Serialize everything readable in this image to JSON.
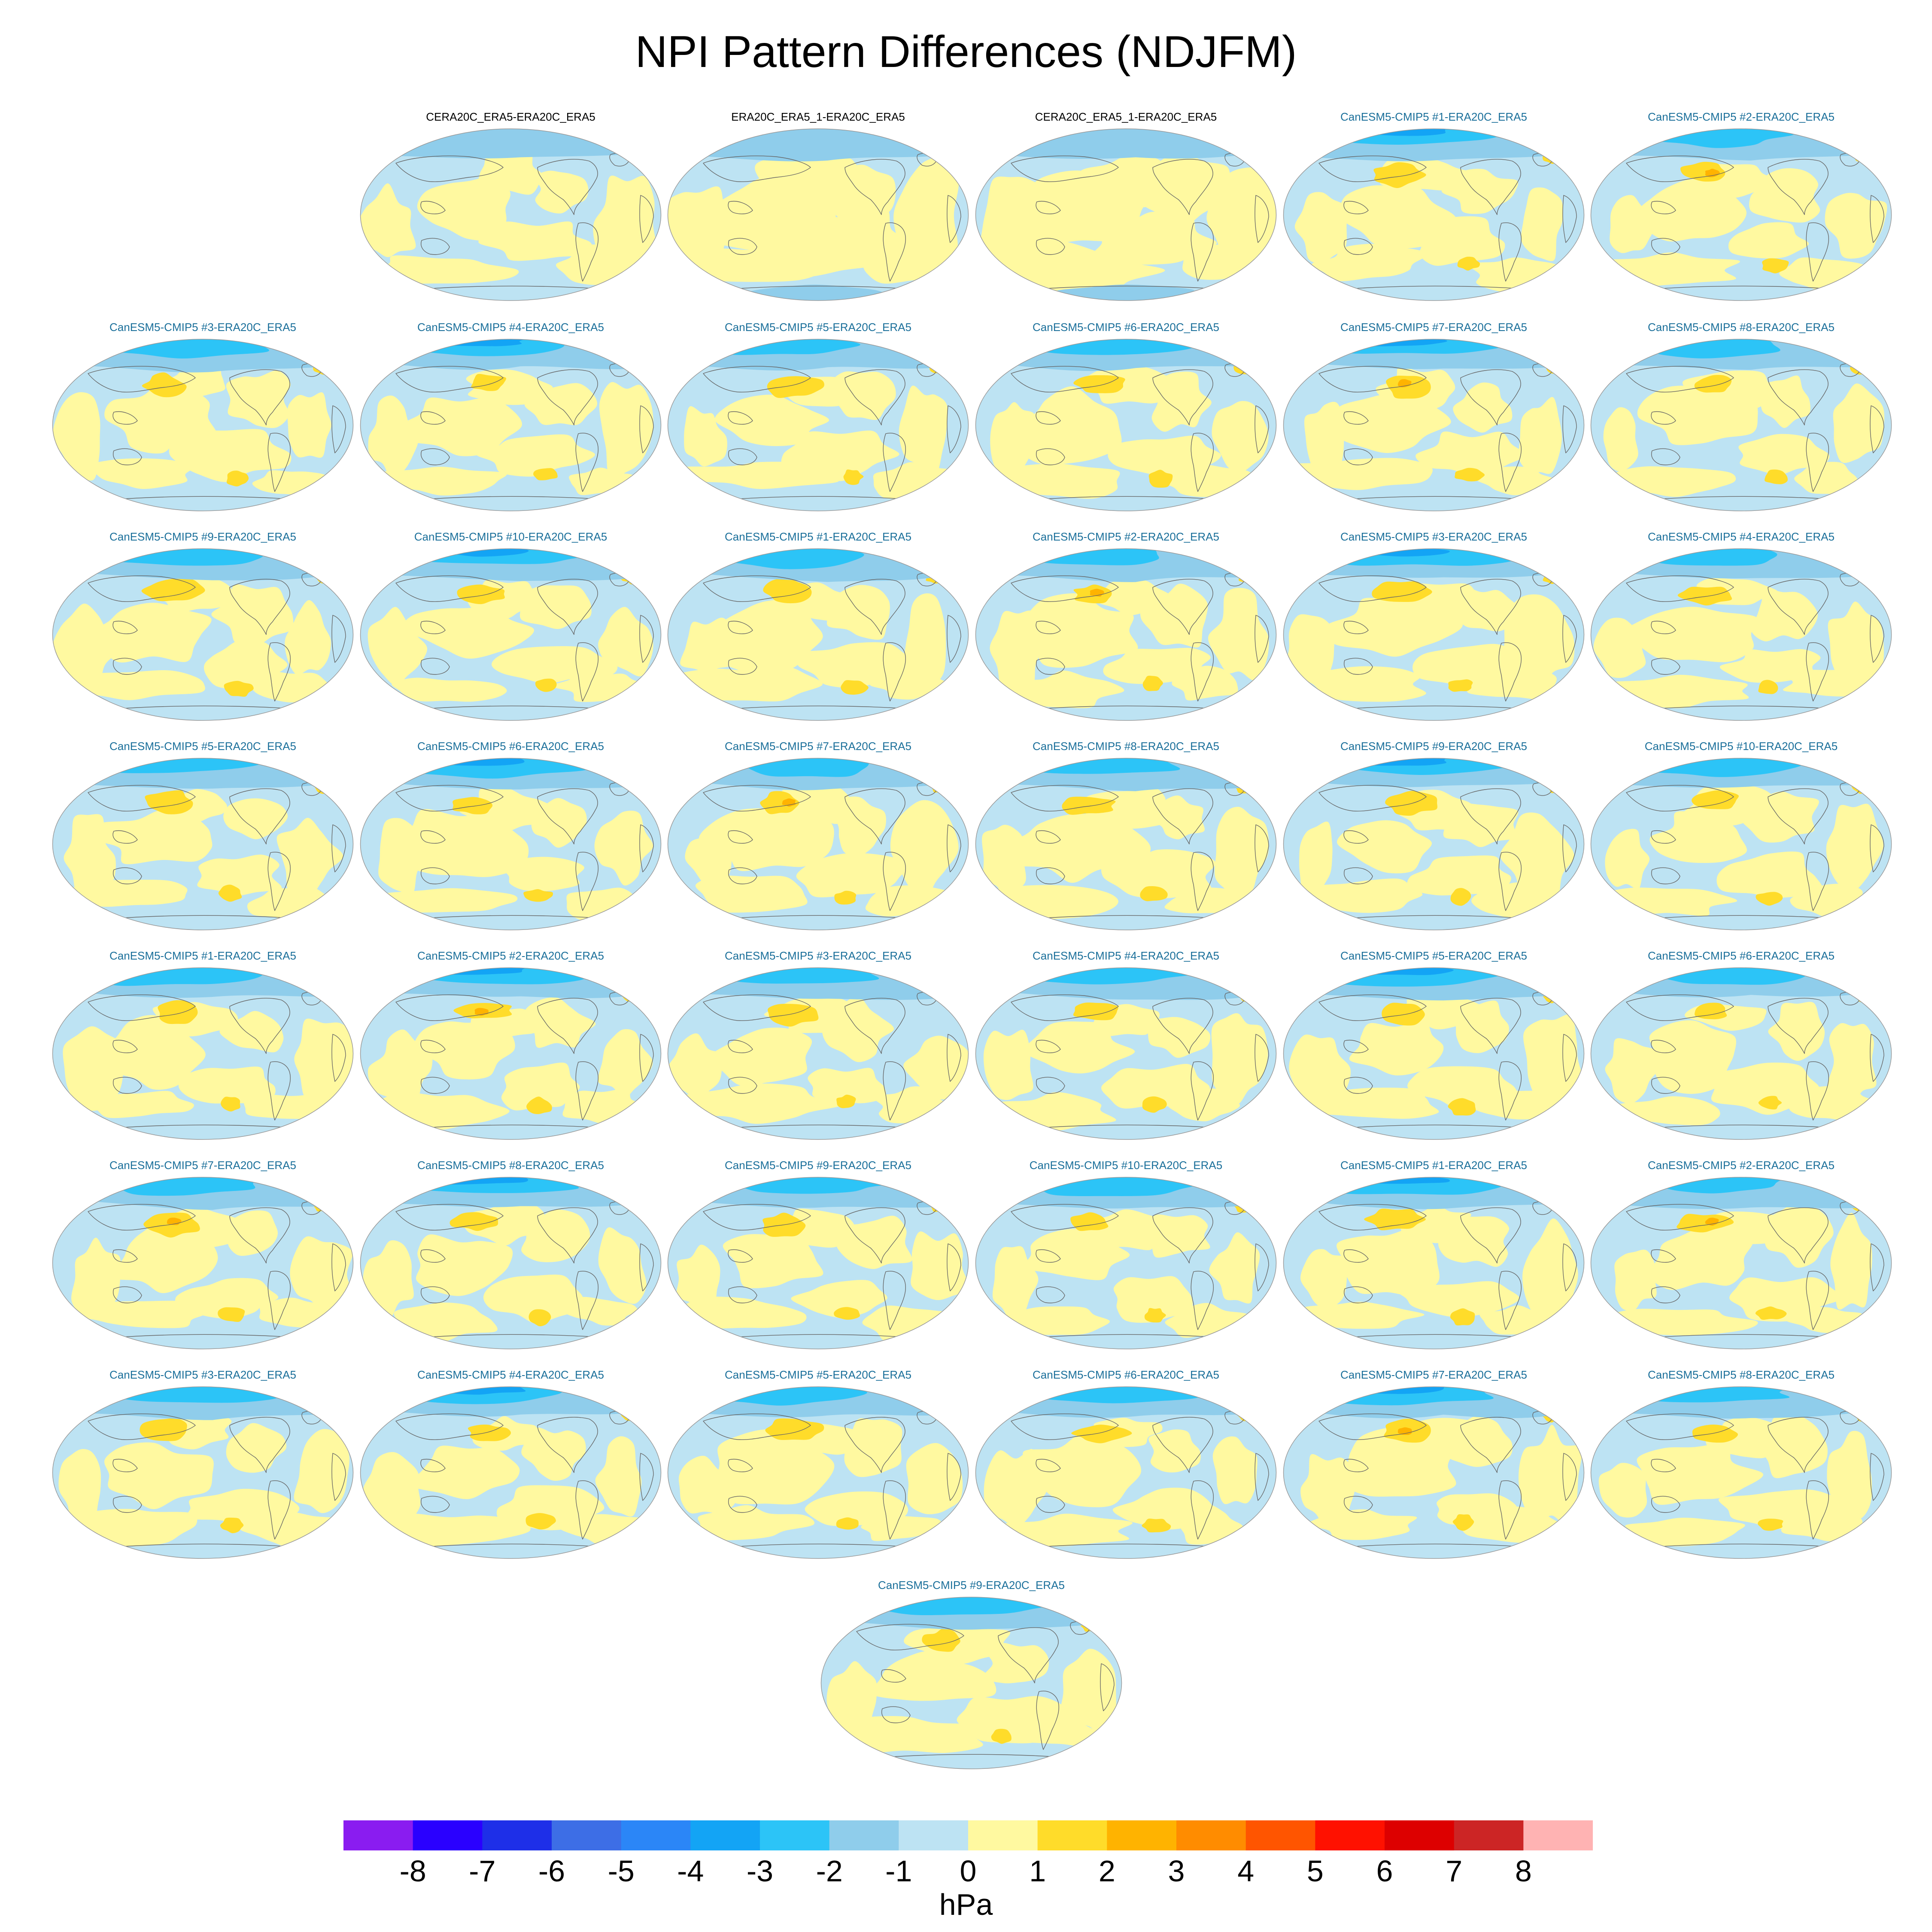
{
  "chart_data": {
    "type": "heatmap",
    "title": "NPI Pattern Differences (NDJFM)",
    "projection": "global Robinson-style maps, Pacific-centered",
    "colorbar": {
      "label": "hPa",
      "tick_labels": [
        "-8",
        "-7",
        "-6",
        "-5",
        "-4",
        "-3",
        "-2",
        "-1",
        "0",
        "1",
        "2",
        "3",
        "4",
        "5",
        "6",
        "7",
        "8"
      ],
      "colors": [
        "#8a1cf0",
        "#2a00ff",
        "#1e2fe8",
        "#3d6ee6",
        "#2b86f7",
        "#13a4f5",
        "#2cc4f7",
        "#8fcdeb",
        "#bde3f3",
        "#fff9a0",
        "#ffdc2a",
        "#ffb300",
        "#ff8c00",
        "#ff5500",
        "#ff1100",
        "#dd0000",
        "#cc2525",
        "#ffb3b3"
      ]
    },
    "panels": [
      {
        "title": "CERA20C_ERA5-ERA20C_ERA5"
      },
      {
        "title": "ERA20C_ERA5_1-ERA20C_ERA5"
      },
      {
        "title": "CERA20C_ERA5_1-ERA20C_ERA5"
      },
      {
        "title": "CanESM5-CMIP5 #1-ERA20C_ERA5"
      },
      {
        "title": "CanESM5-CMIP5 #2-ERA20C_ERA5"
      },
      {
        "title": "CanESM5-CMIP5 #3-ERA20C_ERA5"
      },
      {
        "title": "CanESM5-CMIP5 #4-ERA20C_ERA5"
      },
      {
        "title": "CanESM5-CMIP5 #5-ERA20C_ERA5"
      },
      {
        "title": "CanESM5-CMIP5 #6-ERA20C_ERA5"
      },
      {
        "title": "CanESM5-CMIP5 #7-ERA20C_ERA5"
      },
      {
        "title": "CanESM5-CMIP5 #8-ERA20C_ERA5"
      },
      {
        "title": "CanESM5-CMIP5 #9-ERA20C_ERA5"
      },
      {
        "title": "CanESM5-CMIP5 #10-ERA20C_ERA5"
      },
      {
        "title": "CanESM5-CMIP5 #1-ERA20C_ERA5"
      },
      {
        "title": "CanESM5-CMIP5 #2-ERA20C_ERA5"
      },
      {
        "title": "CanESM5-CMIP5 #3-ERA20C_ERA5"
      },
      {
        "title": "CanESM5-CMIP5 #4-ERA20C_ERA5"
      },
      {
        "title": "CanESM5-CMIP5 #5-ERA20C_ERA5"
      },
      {
        "title": "CanESM5-CMIP5 #6-ERA20C_ERA5"
      },
      {
        "title": "CanESM5-CMIP5 #7-ERA20C_ERA5"
      },
      {
        "title": "CanESM5-CMIP5 #8-ERA20C_ERA5"
      },
      {
        "title": "CanESM5-CMIP5 #9-ERA20C_ERA5"
      },
      {
        "title": "CanESM5-CMIP5 #10-ERA20C_ERA5"
      },
      {
        "title": "CanESM5-CMIP5 #1-ERA20C_ERA5"
      },
      {
        "title": "CanESM5-CMIP5 #2-ERA20C_ERA5"
      },
      {
        "title": "CanESM5-CMIP5 #3-ERA20C_ERA5"
      },
      {
        "title": "CanESM5-CMIP5 #4-ERA20C_ERA5"
      },
      {
        "title": "CanESM5-CMIP5 #5-ERA20C_ERA5"
      },
      {
        "title": "CanESM5-CMIP5 #6-ERA20C_ERA5"
      },
      {
        "title": "CanESM5-CMIP5 #7-ERA20C_ERA5"
      },
      {
        "title": "CanESM5-CMIP5 #8-ERA20C_ERA5"
      },
      {
        "title": "CanESM5-CMIP5 #9-ERA20C_ERA5"
      },
      {
        "title": "CanESM5-CMIP5 #10-ERA20C_ERA5"
      },
      {
        "title": "CanESM5-CMIP5 #1-ERA20C_ERA5"
      },
      {
        "title": "CanESM5-CMIP5 #2-ERA20C_ERA5"
      },
      {
        "title": "CanESM5-CMIP5 #3-ERA20C_ERA5"
      },
      {
        "title": "CanESM5-CMIP5 #4-ERA20C_ERA5"
      },
      {
        "title": "CanESM5-CMIP5 #5-ERA20C_ERA5"
      },
      {
        "title": "CanESM5-CMIP5 #6-ERA20C_ERA5"
      },
      {
        "title": "CanESM5-CMIP5 #7-ERA20C_ERA5"
      },
      {
        "title": "CanESM5-CMIP5 #8-ERA20C_ERA5"
      },
      {
        "title": "CanESM5-CMIP5 #9-ERA20C_ERA5"
      }
    ]
  },
  "style": {
    "reanalysis_title_color": "#000000",
    "model_title_color": "#1a6f9a",
    "ocean_negative_color": "#bde3f3",
    "positive_color": "#fff9a0",
    "moderate_positive_color": "#ffdc2a",
    "strong_positive_color": "#ffb300",
    "negative_1_color": "#8fcdeb",
    "negative_2_color": "#2cc4f7",
    "negative_3_color": "#13a4f5",
    "coast_color": "#666666"
  }
}
